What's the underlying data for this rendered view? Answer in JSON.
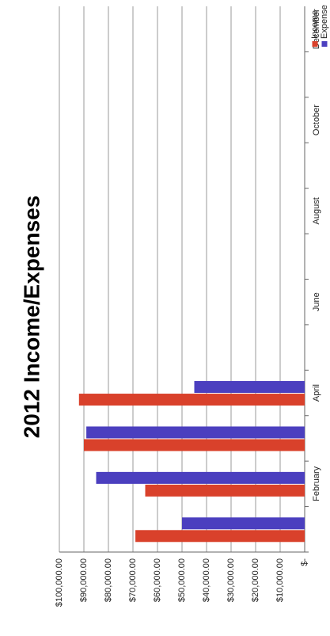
{
  "chart_data": {
    "type": "bar",
    "title": "2012 Income/Expenses",
    "categories": [
      null,
      "February",
      null,
      "April",
      null,
      "June",
      null,
      "August",
      null,
      "October",
      null,
      "December"
    ],
    "series": [
      {
        "name": "Income",
        "color": "#d9412b",
        "values": [
          69000,
          65000,
          90000,
          92000,
          null,
          null,
          null,
          null,
          null,
          null,
          null,
          null
        ]
      },
      {
        "name": "Expense",
        "color": "#4b3fbf",
        "values": [
          50000,
          85000,
          89000,
          45000,
          null,
          null,
          null,
          null,
          null,
          null,
          null,
          null
        ]
      }
    ],
    "ylim": [
      0,
      100000
    ],
    "yticks": [
      {
        "value": 0,
        "label": "$-"
      },
      {
        "value": 10000,
        "label": "$10,000.00"
      },
      {
        "value": 20000,
        "label": "$20,000.00"
      },
      {
        "value": 30000,
        "label": "$30,000.00"
      },
      {
        "value": 40000,
        "label": "$40,000.00"
      },
      {
        "value": 50000,
        "label": "$50,000.00"
      },
      {
        "value": 60000,
        "label": "$60,000.00"
      },
      {
        "value": 70000,
        "label": "$70,000.00"
      },
      {
        "value": 80000,
        "label": "$80,000.00"
      },
      {
        "value": 90000,
        "label": "$90,000.00"
      },
      {
        "value": 100000,
        "label": "$100,000.00"
      }
    ],
    "grid": true,
    "legend": "right"
  }
}
